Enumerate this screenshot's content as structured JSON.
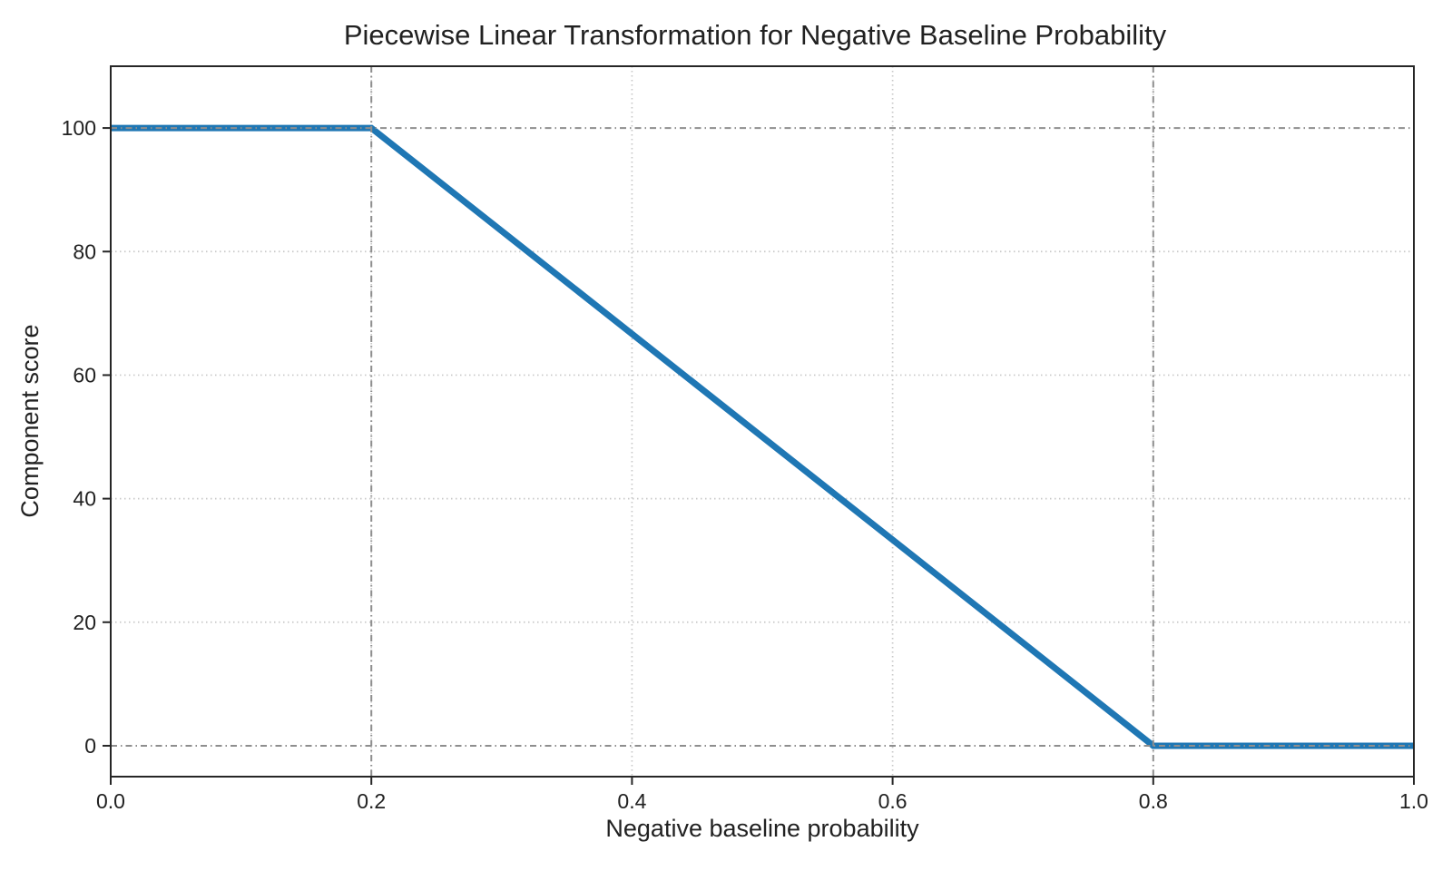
{
  "chart_data": {
    "type": "line",
    "title": "Piecewise Linear Transformation for Negative Baseline Probability",
    "xlabel": "Negative baseline probability",
    "ylabel": "Component score",
    "xlim": [
      0.0,
      1.0
    ],
    "ylim": [
      -5,
      110
    ],
    "xticks": {
      "values": [
        0.0,
        0.2,
        0.4,
        0.6,
        0.8,
        1.0
      ],
      "labels": [
        "0.0",
        "0.2",
        "0.4",
        "0.6",
        "0.8",
        "1.0"
      ]
    },
    "yticks": {
      "values": [
        0,
        20,
        40,
        60,
        80,
        100
      ],
      "labels": [
        "0",
        "20",
        "40",
        "60",
        "80",
        "100"
      ]
    },
    "series": [
      {
        "name": "component-score",
        "color": "#1f77b4",
        "line_width": 7,
        "points": [
          {
            "x": 0.0,
            "y": 100
          },
          {
            "x": 0.2,
            "y": 100
          },
          {
            "x": 0.8,
            "y": 0
          },
          {
            "x": 1.0,
            "y": 0
          }
        ]
      }
    ],
    "breakpoints_x": [
      0.2,
      0.8
    ],
    "plateau_values": [
      100,
      0
    ],
    "grid": {
      "style": "dotted",
      "color": "#c8c8c8",
      "x_values": [
        0.2,
        0.4,
        0.6,
        0.8
      ],
      "y_values": [
        20,
        40,
        60,
        80
      ]
    },
    "reference_lines": {
      "style": "dashdot",
      "color": "#8e8e8e",
      "vertical_x": [
        0.2,
        0.8
      ],
      "horizontal_y": [
        0,
        100
      ]
    },
    "legend": null,
    "background": "#ffffff",
    "spine_color": "#262626",
    "text_color": "#212121"
  }
}
